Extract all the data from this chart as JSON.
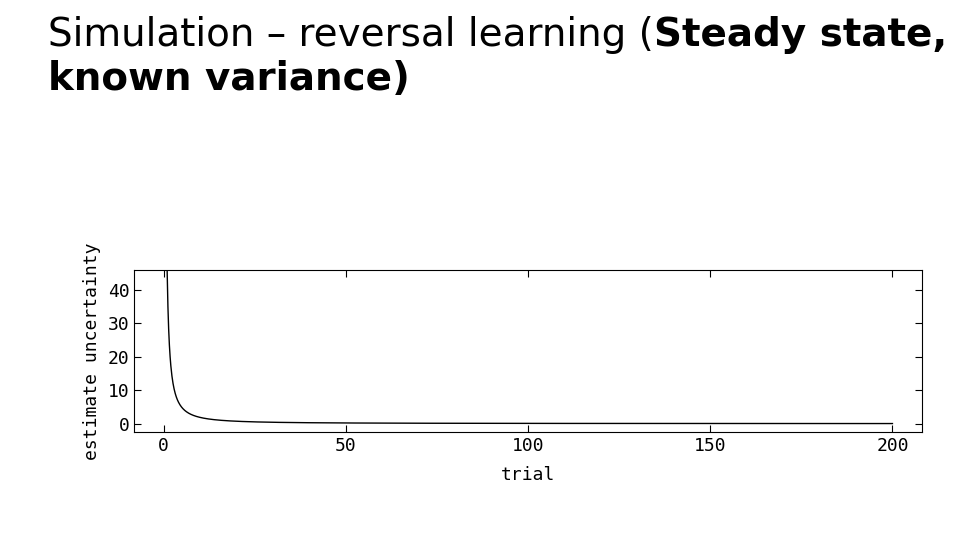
{
  "title_normal": "Simulation – reversal learning (",
  "title_bold_line1": "Steady state,",
  "title_bold_line2": "known variance)",
  "xlabel": "trial",
  "ylabel": "estimate uncertainty",
  "xlim": [
    -8,
    208
  ],
  "ylim": [
    -2.5,
    46
  ],
  "yticks": [
    0,
    10,
    20,
    30,
    40
  ],
  "xticks": [
    0,
    50,
    100,
    150,
    200
  ],
  "line_color": "#000000",
  "bg_color": "#ffffff",
  "curve_a": 45.0,
  "curve_b": 1.38,
  "title_fontsize": 28,
  "axis_fontsize": 13,
  "tick_fontsize": 13
}
